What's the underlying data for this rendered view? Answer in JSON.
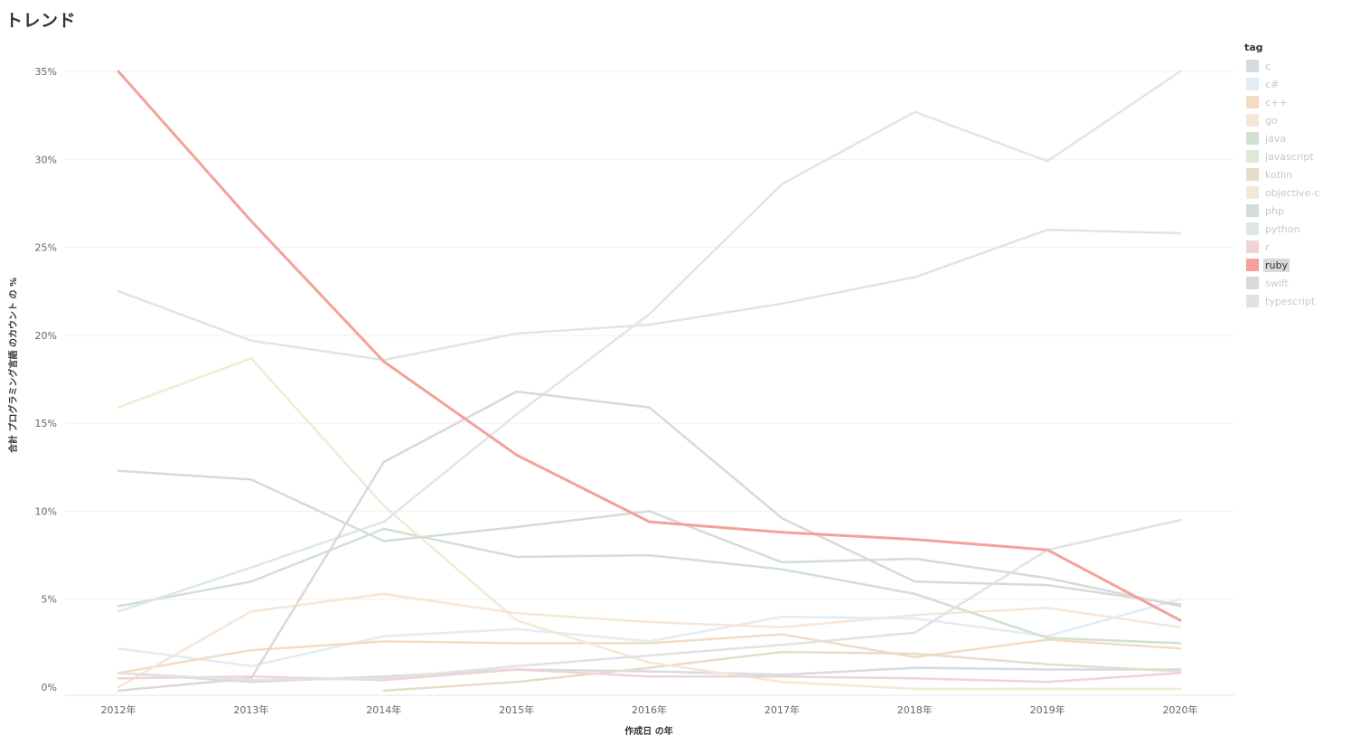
{
  "page": {
    "title": "トレンド"
  },
  "chart_data": {
    "type": "line",
    "title": "トレンド",
    "xlabel": "作成日 の年",
    "ylabel": "合計 プログラミング言語 のカウント の %",
    "ylim": [
      0,
      35
    ],
    "yticks": [
      "0%",
      "5%",
      "10%",
      "15%",
      "20%",
      "25%",
      "30%",
      "35%"
    ],
    "categories": [
      "2012年",
      "2013年",
      "2014年",
      "2015年",
      "2016年",
      "2017年",
      "2018年",
      "2019年",
      "2020年"
    ],
    "highlighted": "ruby",
    "legend_title": "tag",
    "legend_position": "right",
    "grid": true,
    "series": [
      {
        "name": "c",
        "color": "#d3dbe3",
        "values": [
          0.8,
          0.3,
          0.6,
          1.0,
          0.9,
          0.7,
          1.1,
          1.0,
          1.0
        ]
      },
      {
        "name": "c#",
        "color": "#e3ecf3",
        "values": [
          2.2,
          1.2,
          2.9,
          3.3,
          2.6,
          4.0,
          3.9,
          2.9,
          5.0
        ]
      },
      {
        "name": "c++",
        "color": "#f2dcc4",
        "values": [
          0.8,
          2.1,
          2.6,
          2.5,
          2.5,
          3.0,
          1.7,
          2.7,
          2.2
        ]
      },
      {
        "name": "go",
        "color": "#f6e6d7",
        "values": [
          0.0,
          4.3,
          5.3,
          4.2,
          3.7,
          3.4,
          4.1,
          4.5,
          3.4
        ]
      },
      {
        "name": "java",
        "color": "#d1e1cf",
        "values": [
          4.6,
          6.0,
          9.0,
          7.4,
          7.5,
          6.7,
          5.3,
          2.8,
          2.5
        ]
      },
      {
        "name": "javascript",
        "color": "#dde9d6",
        "values": [
          22.5,
          19.7,
          18.6,
          20.1,
          20.6,
          21.8,
          23.3,
          26.0,
          25.8
        ]
      },
      {
        "name": "kotlin",
        "color": "#e6ddc9",
        "values": [
          null,
          null,
          -0.2,
          0.3,
          1.1,
          2.0,
          1.9,
          1.3,
          0.9
        ]
      },
      {
        "name": "objective-c",
        "color": "#f4ead4",
        "values": [
          15.9,
          18.7,
          10.3,
          3.8,
          1.4,
          0.3,
          -0.1,
          -0.1,
          -0.1
        ]
      },
      {
        "name": "php",
        "color": "#d2ddd9",
        "values": [
          12.3,
          11.8,
          8.3,
          9.1,
          10.0,
          7.1,
          7.3,
          6.2,
          4.6
        ]
      },
      {
        "name": "python",
        "color": "#dee8e3",
        "values": [
          4.3,
          6.8,
          9.4,
          15.5,
          21.2,
          28.6,
          32.7,
          29.9,
          35.0
        ]
      },
      {
        "name": "r",
        "color": "#efd4d6",
        "values": [
          0.5,
          0.6,
          0.4,
          1.0,
          0.6,
          0.6,
          0.5,
          0.3,
          0.8
        ]
      },
      {
        "name": "ruby",
        "color": "#f4a19b",
        "values": [
          35.0,
          26.5,
          18.5,
          13.2,
          9.4,
          8.8,
          8.4,
          7.8,
          3.8
        ]
      },
      {
        "name": "swift",
        "color": "#dcd8d8",
        "values": [
          -0.2,
          0.5,
          12.8,
          16.8,
          15.9,
          9.6,
          6.0,
          5.8,
          4.7
        ]
      },
      {
        "name": "typescript",
        "color": "#e3e1e1",
        "values": [
          0.8,
          0.4,
          0.5,
          1.2,
          1.8,
          2.4,
          3.1,
          7.8,
          9.5
        ]
      }
    ]
  }
}
